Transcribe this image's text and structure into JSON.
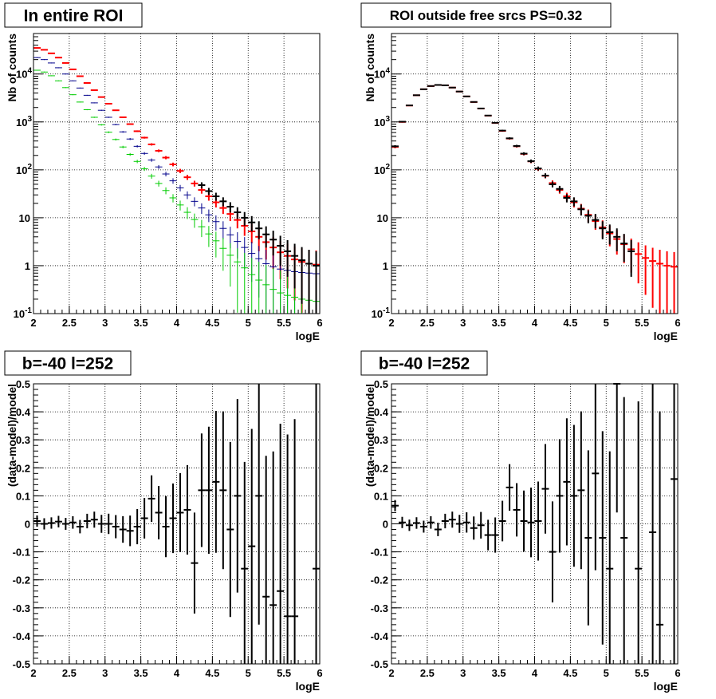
{
  "chart_data": [
    {
      "type": "scatter",
      "title": "In entire ROI",
      "xlabel": "logE",
      "ylabel": "Nb of counts",
      "xlim": [
        2,
        6
      ],
      "ylim": [
        0.1,
        70000
      ],
      "yscale": "log",
      "grid": true,
      "x_ticks": [
        "2",
        "2.5",
        "3",
        "3.5",
        "4",
        "4.5",
        "5",
        "5.5",
        "6"
      ],
      "y_ticks": [
        {
          "base": "10",
          "exp": "-1"
        },
        {
          "base": "1",
          "exp": ""
        },
        {
          "base": "10",
          "exp": ""
        },
        {
          "base": "10",
          "exp": "2"
        },
        {
          "base": "10",
          "exp": "3"
        },
        {
          "base": "10",
          "exp": "4"
        }
      ],
      "series": [
        {
          "color": "#ff0000",
          "x": [
            2.05,
            2.15,
            2.25,
            2.35,
            2.45,
            2.55,
            2.65,
            2.75,
            2.85,
            2.95,
            3.05,
            3.15,
            3.25,
            3.35,
            3.45,
            3.55,
            3.65,
            3.75,
            3.85,
            3.95,
            4.05,
            4.15,
            4.25,
            4.35,
            4.45,
            4.55,
            4.65,
            4.75,
            4.85,
            4.95,
            5.05,
            5.15,
            5.25,
            5.35,
            5.45,
            5.55,
            5.65,
            5.75,
            5.85,
            5.95
          ],
          "y": [
            35000,
            32000,
            27000,
            22000,
            17000,
            12500,
            9000,
            6500,
            4600,
            3300,
            2400,
            1750,
            1250,
            900,
            640,
            470,
            340,
            250,
            180,
            130,
            95,
            70,
            52,
            38,
            28,
            21,
            16,
            12,
            9,
            6.8,
            5.2,
            4,
            3.1,
            2.4,
            1.9,
            1.6,
            1.35,
            1.2,
            1.1,
            1.05
          ]
        },
        {
          "color": "#00008b",
          "x": [
            2.05,
            2.15,
            2.25,
            2.35,
            2.45,
            2.55,
            2.65,
            2.75,
            2.85,
            2.95,
            3.05,
            3.15,
            3.25,
            3.35,
            3.45,
            3.55,
            3.65,
            3.75,
            3.85,
            3.95,
            4.05,
            4.15,
            4.25,
            4.35,
            4.45,
            4.55,
            4.65,
            4.75,
            4.85,
            4.95,
            5.05,
            5.15,
            5.25,
            5.35,
            5.45,
            5.55,
            5.65,
            5.75,
            5.85,
            5.95
          ],
          "y": [
            22000,
            20000,
            17000,
            13500,
            10000,
            7200,
            5100,
            3600,
            2500,
            1750,
            1250,
            880,
            620,
            440,
            310,
            220,
            160,
            115,
            82,
            59,
            42,
            30,
            22,
            16,
            11.5,
            8.3,
            6,
            4.4,
            3.2,
            2.4,
            1.8,
            1.4,
            1.1,
            0.95,
            0.85,
            0.8,
            0.75,
            0.72,
            0.7,
            0.68
          ]
        },
        {
          "color": "#00cc00",
          "x": [
            2.05,
            2.15,
            2.25,
            2.35,
            2.45,
            2.55,
            2.65,
            2.75,
            2.85,
            2.95,
            3.05,
            3.15,
            3.25,
            3.35,
            3.45,
            3.55,
            3.65,
            3.75,
            3.85,
            3.95,
            4.05,
            4.15,
            4.25,
            4.35,
            4.45,
            4.55,
            4.65,
            4.75,
            4.85,
            4.95,
            5.05,
            5.15,
            5.25,
            5.35,
            5.45,
            5.55,
            5.65,
            5.75,
            5.85,
            5.95
          ],
          "y": [
            12000,
            11000,
            9200,
            7200,
            5200,
            3700,
            2600,
            1800,
            1250,
            870,
            610,
            430,
            300,
            210,
            150,
            105,
            74,
            52,
            37,
            26,
            18.5,
            13,
            9.2,
            6.5,
            4.6,
            3.3,
            2.3,
            1.65,
            1.2,
            0.9,
            0.65,
            0.5,
            0.4,
            0.32,
            0.27,
            0.24,
            0.22,
            0.2,
            0.19,
            0.18
          ]
        },
        {
          "color": "#000000",
          "x": [
            4.35,
            4.45,
            4.55,
            4.65,
            4.75,
            4.85,
            4.95,
            5.05,
            5.15,
            5.25,
            5.35,
            5.45,
            5.55,
            5.65,
            5.75,
            5.85,
            5.95
          ],
          "y": [
            48,
            36,
            28,
            22,
            17,
            13,
            10,
            8,
            6,
            4.5,
            3.5,
            2.6,
            2,
            1.6,
            1.3,
            1.1,
            1
          ]
        }
      ]
    },
    {
      "type": "scatter",
      "title": "ROI outside free srcs PS=0.32",
      "xlabel": "logE",
      "ylabel": "Nb of counts",
      "xlim": [
        2,
        6
      ],
      "ylim": [
        0.1,
        70000
      ],
      "yscale": "log",
      "grid": true,
      "x_ticks": [
        "2",
        "2.5",
        "3",
        "3.5",
        "4",
        "4.5",
        "5",
        "5.5",
        "6"
      ],
      "y_ticks": [
        {
          "base": "10",
          "exp": "-1"
        },
        {
          "base": "1",
          "exp": ""
        },
        {
          "base": "10",
          "exp": ""
        },
        {
          "base": "10",
          "exp": "2"
        },
        {
          "base": "10",
          "exp": "3"
        },
        {
          "base": "10",
          "exp": "4"
        }
      ],
      "series": [
        {
          "color": "#ff0000",
          "x": [
            2.05,
            2.15,
            2.25,
            2.35,
            2.45,
            2.55,
            2.65,
            2.75,
            2.85,
            2.95,
            3.05,
            3.15,
            3.25,
            3.35,
            3.45,
            3.55,
            3.65,
            3.75,
            3.85,
            3.95,
            4.05,
            4.15,
            4.25,
            4.35,
            4.45,
            4.55,
            4.65,
            4.75,
            4.85,
            4.95,
            5.05,
            5.15,
            5.25,
            5.35,
            5.45,
            5.55,
            5.65,
            5.75,
            5.85,
            5.95
          ],
          "y": [
            300,
            1000,
            2200,
            3600,
            4800,
            5600,
            5900,
            5800,
            5200,
            4300,
            3400,
            2600,
            1900,
            1350,
            950,
            650,
            450,
            310,
            215,
            150,
            105,
            75,
            53,
            38,
            28,
            21,
            15.5,
            11.5,
            8.5,
            6.3,
            4.7,
            3.6,
            2.8,
            2.2,
            1.75,
            1.45,
            1.25,
            1.1,
            1,
            0.95
          ]
        },
        {
          "color": "#000000",
          "x": [
            2.05,
            2.15,
            2.25,
            2.35,
            2.45,
            2.55,
            2.65,
            2.75,
            2.85,
            2.95,
            3.05,
            3.15,
            3.25,
            3.35,
            3.45,
            3.55,
            3.65,
            3.75,
            3.85,
            3.95,
            4.05,
            4.15,
            4.25,
            4.35,
            4.45,
            4.55,
            4.65,
            4.75,
            4.85,
            4.95,
            5.05,
            5.15,
            5.25,
            5.35
          ],
          "y": [
            310,
            1010,
            2210,
            3610,
            4810,
            5610,
            5910,
            5810,
            5210,
            4310,
            3410,
            2610,
            1910,
            1360,
            960,
            660,
            455,
            315,
            218,
            152,
            107,
            76,
            50,
            40,
            26,
            22,
            15,
            11,
            9,
            6,
            5,
            4,
            2.9,
            2
          ]
        }
      ]
    },
    {
      "type": "scatter",
      "title": "b=-40 l=252",
      "xlabel": "logE",
      "ylabel": "(data-model)/model",
      "xlim": [
        2,
        6
      ],
      "ylim": [
        -0.5,
        0.5
      ],
      "grid": true,
      "x_ticks": [
        "2",
        "2.5",
        "3",
        "3.5",
        "4",
        "4.5",
        "5",
        "5.5",
        "6"
      ],
      "y_ticks": [
        "-0.5",
        "-0.4",
        "-0.3",
        "-0.2",
        "-0.1",
        "0",
        "0.1",
        "0.2",
        "0.3",
        "0.4",
        "0.5"
      ],
      "series": [
        {
          "color": "#000000",
          "x": [
            2.05,
            2.15,
            2.25,
            2.35,
            2.45,
            2.55,
            2.65,
            2.75,
            2.85,
            2.95,
            3.05,
            3.15,
            3.25,
            3.35,
            3.45,
            3.55,
            3.65,
            3.75,
            3.85,
            3.95,
            4.05,
            4.15,
            4.25,
            4.35,
            4.45,
            4.55,
            4.65,
            4.75,
            4.85,
            4.95,
            5.05,
            5.15,
            5.25,
            5.35,
            5.45,
            5.55,
            5.65,
            5.95
          ],
          "y": [
            0.01,
            0,
            0.003,
            0.008,
            0,
            0.005,
            -0.01,
            0.01,
            0.015,
            0,
            0,
            -0.01,
            -0.02,
            -0.025,
            -0.01,
            0.02,
            0.09,
            0.04,
            -0.01,
            0.02,
            0.04,
            0.05,
            -0.14,
            0.12,
            0.12,
            0.15,
            0.12,
            -0.02,
            0.1,
            -0.16,
            -0.08,
            0.1,
            -0.26,
            -0.29,
            -0.24,
            -0.33,
            -0.33,
            -0.16
          ]
        }
      ]
    },
    {
      "type": "scatter",
      "title": "b=-40 l=252",
      "xlabel": "logE",
      "ylabel": "(data-model)/model",
      "xlim": [
        2,
        6
      ],
      "ylim": [
        -0.5,
        0.5
      ],
      "grid": true,
      "x_ticks": [
        "2",
        "2.5",
        "3",
        "3.5",
        "4",
        "4.5",
        "5",
        "5.5",
        "6"
      ],
      "y_ticks": [
        "-0.5",
        "-0.4",
        "-0.3",
        "-0.2",
        "-0.1",
        "0",
        "0.1",
        "0.2",
        "0.3",
        "0.4",
        "0.5"
      ],
      "series": [
        {
          "color": "#000000",
          "x": [
            2.05,
            2.15,
            2.25,
            2.35,
            2.45,
            2.55,
            2.65,
            2.75,
            2.85,
            2.95,
            3.05,
            3.15,
            3.25,
            3.35,
            3.45,
            3.55,
            3.65,
            3.75,
            3.85,
            3.95,
            4.05,
            4.15,
            4.25,
            4.35,
            4.45,
            4.55,
            4.65,
            4.75,
            4.85,
            4.95,
            5.05,
            5.15,
            5.25,
            5.45,
            5.65,
            5.75,
            5.95
          ],
          "y": [
            0.065,
            0.005,
            -0.005,
            0.003,
            -0.01,
            0.005,
            -0.02,
            0.01,
            0.015,
            0,
            0.005,
            -0.015,
            -0.005,
            -0.04,
            -0.04,
            0.01,
            0.13,
            0.05,
            0.01,
            0.005,
            0.01,
            0.125,
            -0.1,
            0.1,
            0.15,
            0.1,
            0.12,
            -0.05,
            0.18,
            -0.05,
            -0.16,
            0.5,
            -0.05,
            -0.16,
            -0.03,
            -0.36,
            0.16
          ]
        }
      ]
    }
  ]
}
